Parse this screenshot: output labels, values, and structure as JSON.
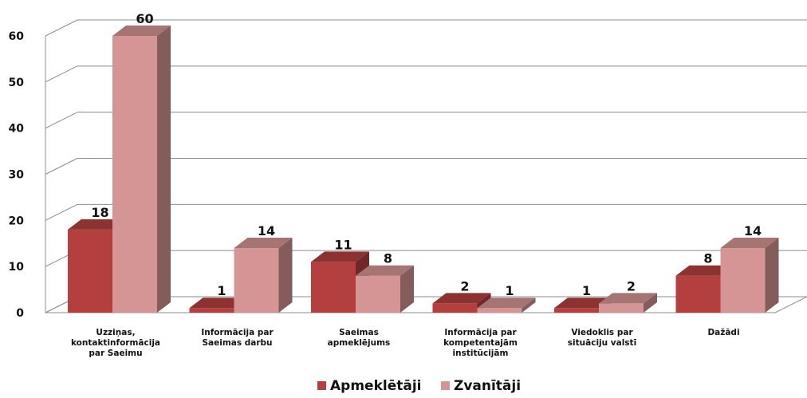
{
  "chart_data": {
    "type": "bar",
    "style": "3d-clustered",
    "categories": [
      [
        "Uzziņas,",
        "kontaktinformācija",
        "par Saeimu"
      ],
      [
        "Informācija par",
        "Saeimas darbu"
      ],
      [
        "Saeimas",
        "apmeklējums"
      ],
      [
        "Informācija par",
        "kompetentajām",
        "institūcijām"
      ],
      [
        "Viedoklis par",
        "situāciju valstī"
      ],
      [
        "Dažādi"
      ]
    ],
    "series": [
      {
        "name": "Apmeklētāji",
        "values": [
          18,
          1,
          11,
          2,
          1,
          8
        ],
        "color": "#B3403E"
      },
      {
        "name": "Zvanītāji",
        "values": [
          60,
          14,
          8,
          1,
          2,
          14
        ],
        "color": "#D59594"
      }
    ],
    "ylim": [
      0,
      60
    ],
    "yticks": [
      0,
      10,
      20,
      30,
      40,
      50,
      60
    ],
    "grid": true,
    "legend": "bottom"
  }
}
